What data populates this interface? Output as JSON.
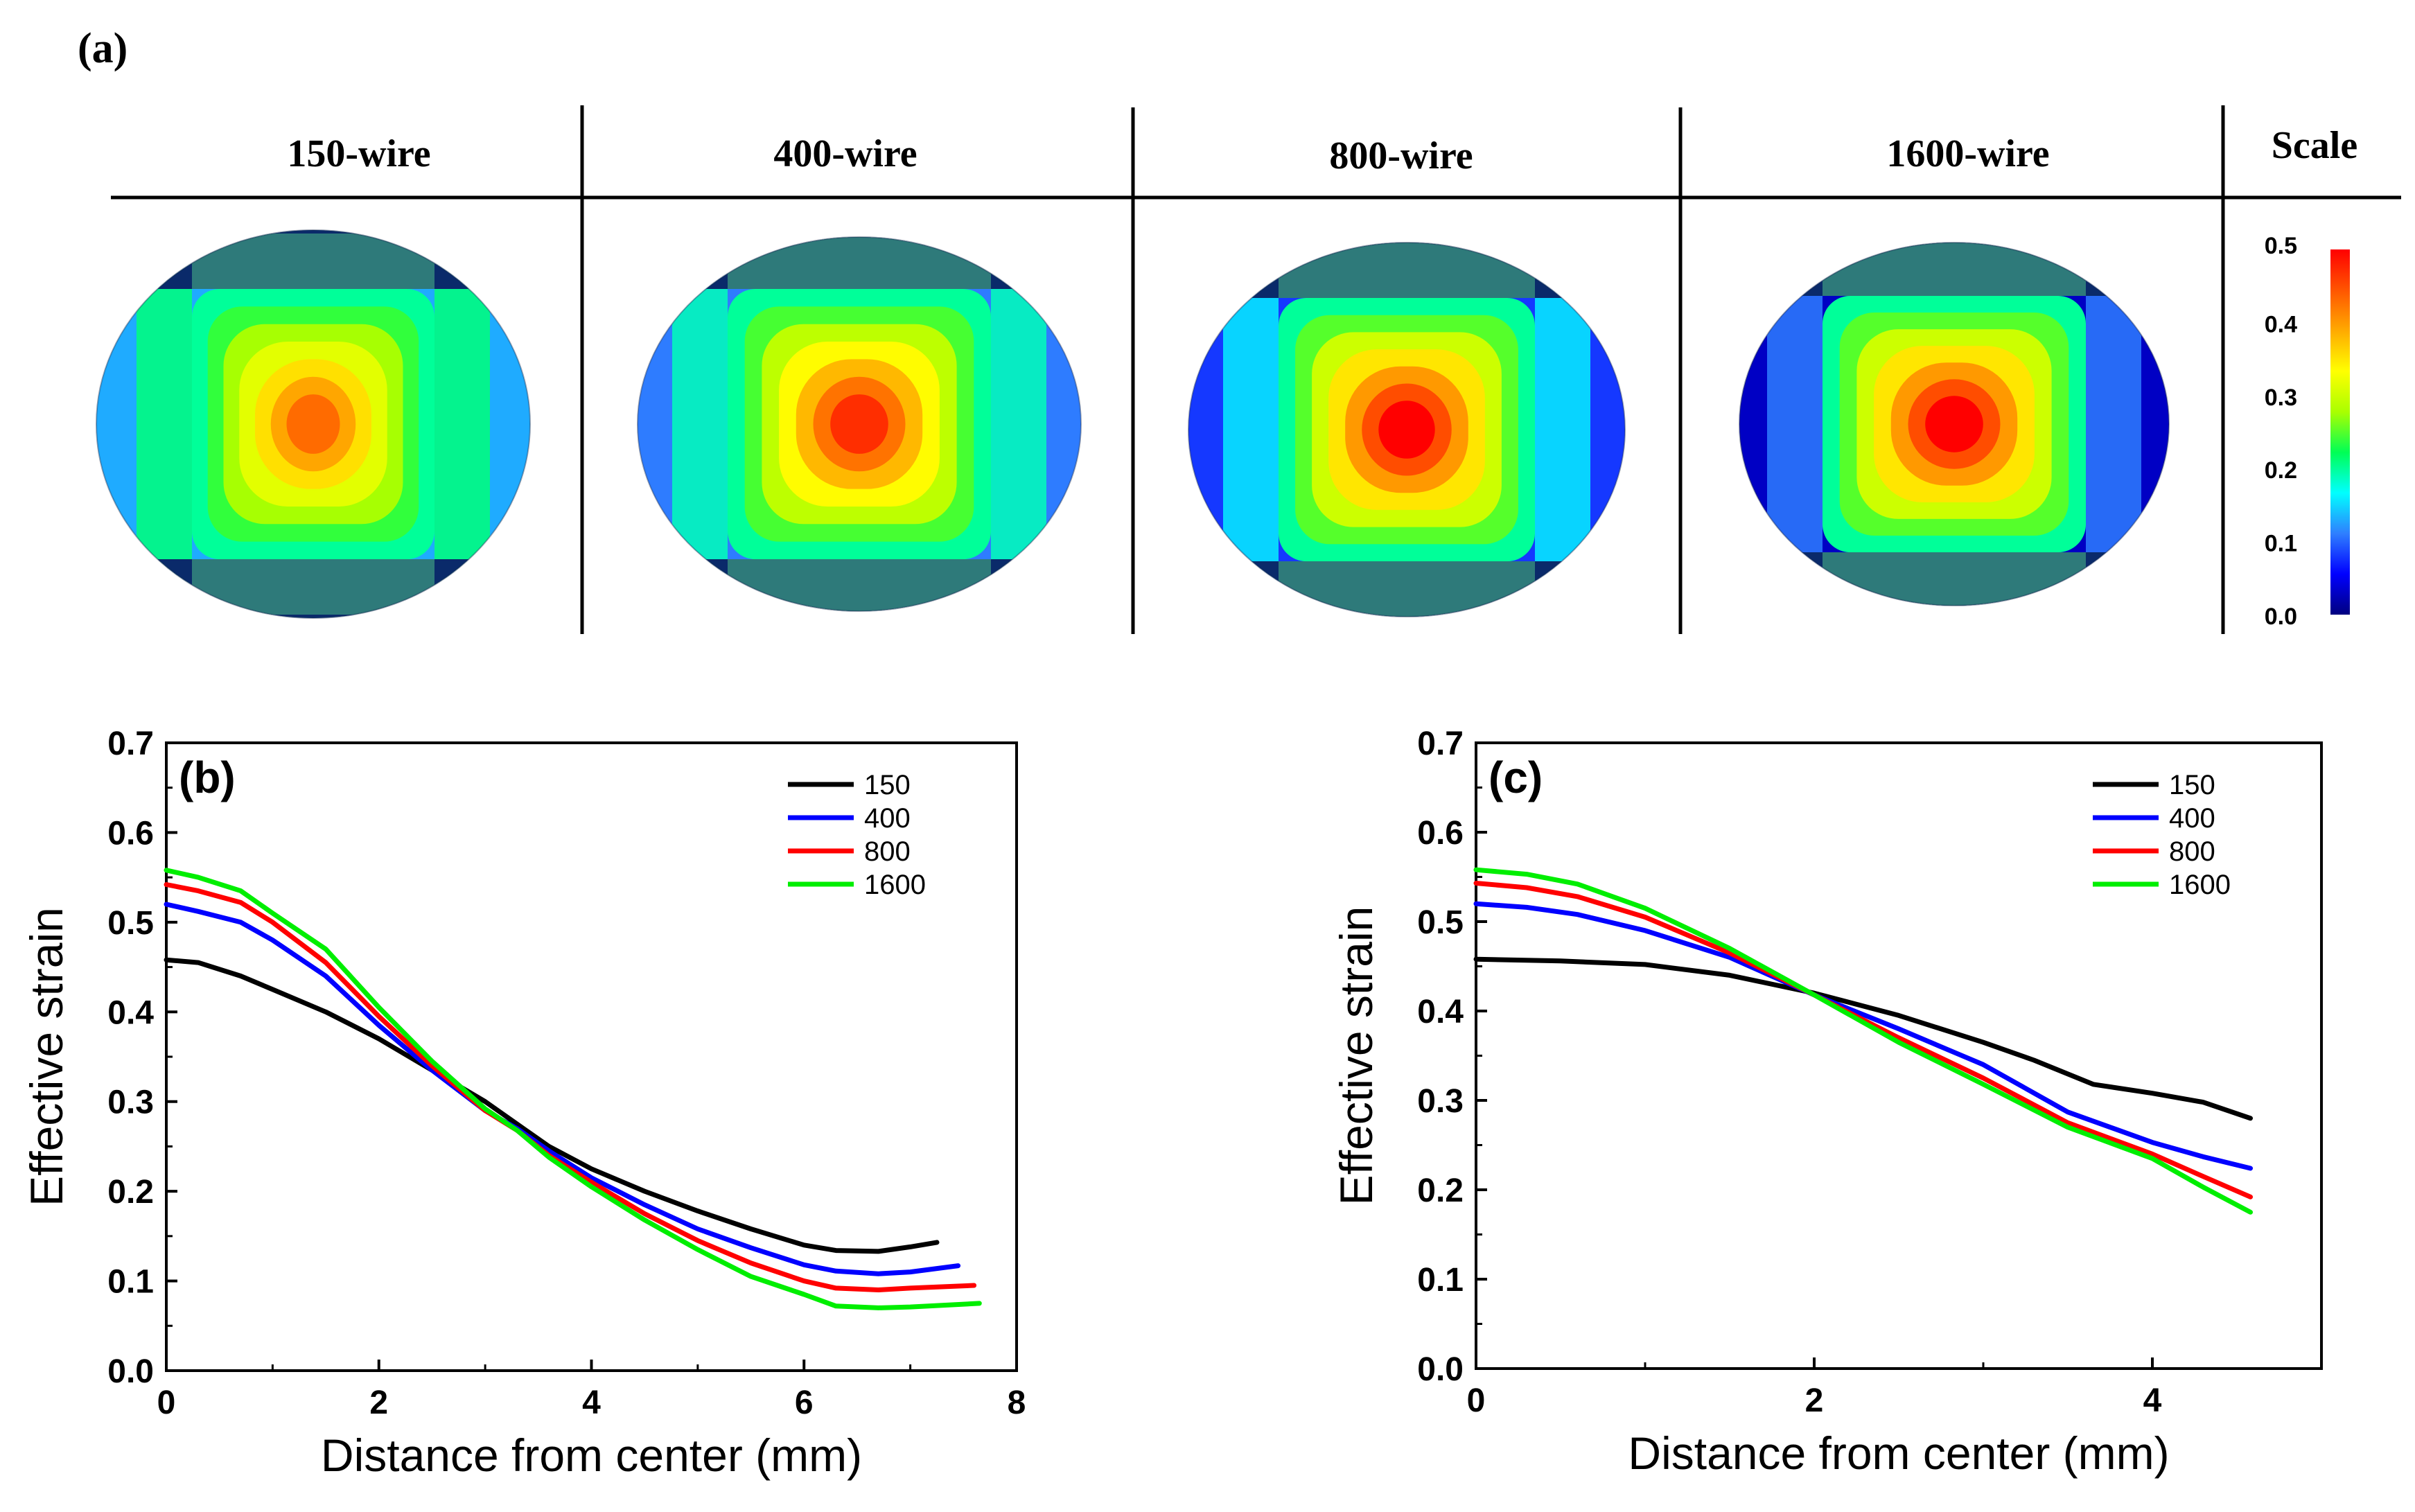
{
  "panel_a": {
    "label": "(a)",
    "columns": [
      "150-wire",
      "400-wire",
      "800-wire",
      "1600-wire"
    ],
    "scale_title": "Scale",
    "scale_ticks": [
      "0.5",
      "0.4",
      "0.3",
      "0.2",
      "0.1",
      "0.0"
    ],
    "scale_values": [
      0.5,
      0.4,
      0.3,
      0.2,
      0.1,
      0.0
    ],
    "scale_colors": [
      "#00007f",
      "#0000ff",
      "#2f7fff",
      "#00ffff",
      "#00ff55",
      "#aaff00",
      "#ffff00",
      "#ffaa00",
      "#ff5500",
      "#ff0000"
    ],
    "maps": [
      {
        "core_strain": 0.43,
        "side_strain": 0.13
      },
      {
        "core_strain": 0.47,
        "side_strain": 0.11
      },
      {
        "core_strain": 0.5,
        "side_strain": 0.08
      },
      {
        "core_strain": 0.5,
        "side_strain": 0.03
      }
    ]
  },
  "chart_data": [
    {
      "type": "line",
      "panel_label": "(b)",
      "xlabel": "Distance from center (mm)",
      "ylabel": "Effective strain",
      "xlim": [
        0,
        8
      ],
      "ylim": [
        0,
        0.7
      ],
      "xticks": [
        "0",
        "2",
        "4",
        "6",
        "8"
      ],
      "yticks": [
        "0.0",
        "0.1",
        "0.2",
        "0.3",
        "0.4",
        "0.5",
        "0.6",
        "0.7"
      ],
      "legend_position": "top-right",
      "series": [
        {
          "name": "150",
          "color": "#000000",
          "x": [
            0,
            0.3,
            0.7,
            1.0,
            1.5,
            2.0,
            2.5,
            3.0,
            3.3,
            3.6,
            4.0,
            4.5,
            5.0,
            5.5,
            6.0,
            6.3,
            6.7,
            7.0,
            7.25
          ],
          "y": [
            0.458,
            0.455,
            0.44,
            0.425,
            0.4,
            0.37,
            0.335,
            0.3,
            0.275,
            0.25,
            0.225,
            0.2,
            0.178,
            0.158,
            0.14,
            0.134,
            0.133,
            0.138,
            0.143
          ]
        },
        {
          "name": "400",
          "color": "#0000ff",
          "x": [
            0,
            0.3,
            0.7,
            1.0,
            1.5,
            2.0,
            2.5,
            3.0,
            3.3,
            3.6,
            4.0,
            4.5,
            5.0,
            5.5,
            6.0,
            6.3,
            6.7,
            7.0,
            7.45
          ],
          "y": [
            0.52,
            0.512,
            0.5,
            0.48,
            0.44,
            0.385,
            0.335,
            0.29,
            0.27,
            0.245,
            0.215,
            0.185,
            0.158,
            0.137,
            0.118,
            0.111,
            0.108,
            0.11,
            0.117
          ]
        },
        {
          "name": "800",
          "color": "#ff0000",
          "x": [
            0,
            0.3,
            0.7,
            1.0,
            1.5,
            2.0,
            2.5,
            3.0,
            3.3,
            3.6,
            4.0,
            4.5,
            5.0,
            5.5,
            6.0,
            6.3,
            6.7,
            7.0,
            7.6
          ],
          "y": [
            0.542,
            0.535,
            0.522,
            0.5,
            0.455,
            0.395,
            0.34,
            0.29,
            0.268,
            0.24,
            0.21,
            0.175,
            0.145,
            0.12,
            0.1,
            0.092,
            0.09,
            0.092,
            0.095
          ]
        },
        {
          "name": "1600",
          "color": "#00ee00",
          "x": [
            0,
            0.3,
            0.7,
            1.0,
            1.5,
            2.0,
            2.5,
            3.0,
            3.3,
            3.6,
            4.0,
            4.5,
            5.0,
            5.5,
            6.0,
            6.3,
            6.7,
            7.0,
            7.65
          ],
          "y": [
            0.558,
            0.55,
            0.535,
            0.51,
            0.47,
            0.405,
            0.345,
            0.292,
            0.268,
            0.238,
            0.205,
            0.168,
            0.135,
            0.105,
            0.085,
            0.072,
            0.07,
            0.071,
            0.075
          ]
        }
      ]
    },
    {
      "type": "line",
      "panel_label": "(c)",
      "xlabel": "Distance from center (mm)",
      "ylabel": "Effective strain",
      "xlim": [
        0,
        5
      ],
      "ylim": [
        0,
        0.7
      ],
      "xticks": [
        "0",
        "2",
        "4"
      ],
      "yticks": [
        "0.0",
        "0.1",
        "0.2",
        "0.3",
        "0.4",
        "0.5",
        "0.6",
        "0.7"
      ],
      "legend_position": "top-right",
      "series": [
        {
          "name": "150",
          "color": "#000000",
          "x": [
            0,
            0.5,
            1.0,
            1.5,
            2.0,
            2.5,
            3.0,
            3.3,
            3.65,
            4.0,
            4.3,
            4.58
          ],
          "y": [
            0.458,
            0.456,
            0.452,
            0.44,
            0.42,
            0.395,
            0.365,
            0.345,
            0.318,
            0.308,
            0.298,
            0.28
          ]
        },
        {
          "name": "400",
          "color": "#0000ff",
          "x": [
            0,
            0.3,
            0.6,
            1.0,
            1.5,
            2.0,
            2.5,
            3.0,
            3.5,
            4.0,
            4.3,
            4.58
          ],
          "y": [
            0.52,
            0.516,
            0.508,
            0.49,
            0.46,
            0.418,
            0.38,
            0.34,
            0.287,
            0.253,
            0.237,
            0.224
          ]
        },
        {
          "name": "800",
          "color": "#ff0000",
          "x": [
            0,
            0.3,
            0.6,
            1.0,
            1.5,
            2.0,
            2.5,
            3.0,
            3.5,
            4.0,
            4.3,
            4.58
          ],
          "y": [
            0.543,
            0.538,
            0.528,
            0.505,
            0.465,
            0.418,
            0.37,
            0.325,
            0.275,
            0.24,
            0.215,
            0.192
          ]
        },
        {
          "name": "1600",
          "color": "#00ee00",
          "x": [
            0,
            0.3,
            0.6,
            1.0,
            1.5,
            2.0,
            2.5,
            3.0,
            3.5,
            4.0,
            4.3,
            4.58
          ],
          "y": [
            0.558,
            0.553,
            0.542,
            0.515,
            0.47,
            0.418,
            0.365,
            0.318,
            0.27,
            0.235,
            0.203,
            0.175
          ]
        }
      ]
    }
  ]
}
